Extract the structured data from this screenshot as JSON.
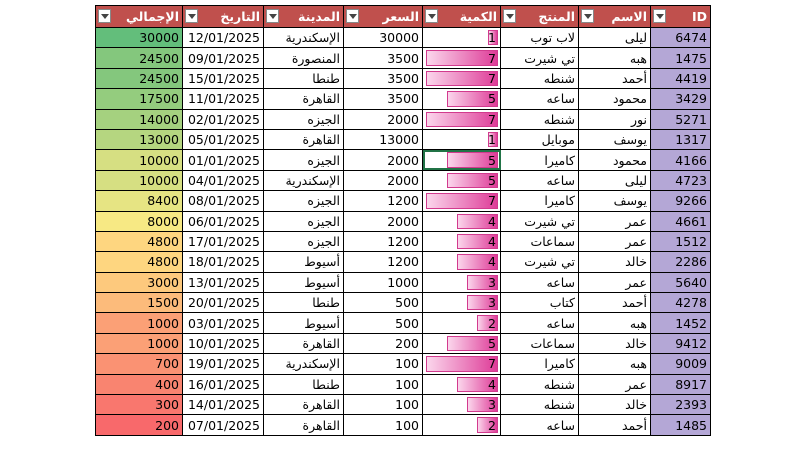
{
  "table": {
    "columns": [
      "ID",
      "الاسم",
      "المنتج",
      "الكمية",
      "السعر",
      "المدينة",
      "التاريخ",
      "الإجمالي"
    ],
    "rows": [
      [
        6474,
        "ليلى",
        "لاب توب",
        1,
        30000,
        "الإسكندرية",
        "12/01/2025",
        30000
      ],
      [
        1475,
        "هبه",
        "تي شيرت",
        7,
        3500,
        "المنصورة",
        "09/01/2025",
        24500
      ],
      [
        4419,
        "أحمد",
        "شنطه",
        7,
        3500,
        "طنطا",
        "15/01/2025",
        24500
      ],
      [
        3429,
        "محمود",
        "ساعه",
        5,
        3500,
        "القاهرة",
        "11/01/2025",
        17500
      ],
      [
        5271,
        "نور",
        "شنطه",
        7,
        2000,
        "الجيزه",
        "02/01/2025",
        14000
      ],
      [
        1317,
        "يوسف",
        "موبايل",
        1,
        13000,
        "القاهرة",
        "05/01/2025",
        13000
      ],
      [
        4166,
        "محمود",
        "كاميرا",
        5,
        2000,
        "الجيزه",
        "01/01/2025",
        10000
      ],
      [
        4723,
        "ليلى",
        "ساعه",
        5,
        2000,
        "الإسكندرية",
        "04/01/2025",
        10000
      ],
      [
        9266,
        "يوسف",
        "كاميرا",
        7,
        1200,
        "الجيزه",
        "08/01/2025",
        8400
      ],
      [
        4661,
        "عمر",
        "تي شيرت",
        4,
        2000,
        "الجيزه",
        "06/01/2025",
        8000
      ],
      [
        1512,
        "عمر",
        "سماعات",
        4,
        1200,
        "الجيزه",
        "17/01/2025",
        4800
      ],
      [
        2286,
        "خالد",
        "تي شيرت",
        4,
        1200,
        "أسيوط",
        "18/01/2025",
        4800
      ],
      [
        5640,
        "عمر",
        "ساعه",
        3,
        1000,
        "أسيوط",
        "13/01/2025",
        3000
      ],
      [
        4278,
        "أحمد",
        "كتاب",
        3,
        500,
        "طنطا",
        "20/01/2025",
        1500
      ],
      [
        1452,
        "هبه",
        "ساعه",
        2,
        500,
        "أسيوط",
        "03/01/2025",
        1000
      ],
      [
        9412,
        "خالد",
        "سماعات",
        5,
        200,
        "القاهرة",
        "10/01/2025",
        1000
      ],
      [
        9009,
        "هبه",
        "كاميرا",
        7,
        100,
        "الإسكندرية",
        "19/01/2025",
        700
      ],
      [
        8917,
        "عمر",
        "شنطه",
        4,
        100,
        "طنطا",
        "16/01/2025",
        400
      ],
      [
        2393,
        "خالد",
        "شنطه",
        3,
        100,
        "القاهرة",
        "14/01/2025",
        300
      ],
      [
        1485,
        "أحمد",
        "ساعه",
        2,
        100,
        "القاهرة",
        "07/01/2025",
        200
      ]
    ]
  }
}
